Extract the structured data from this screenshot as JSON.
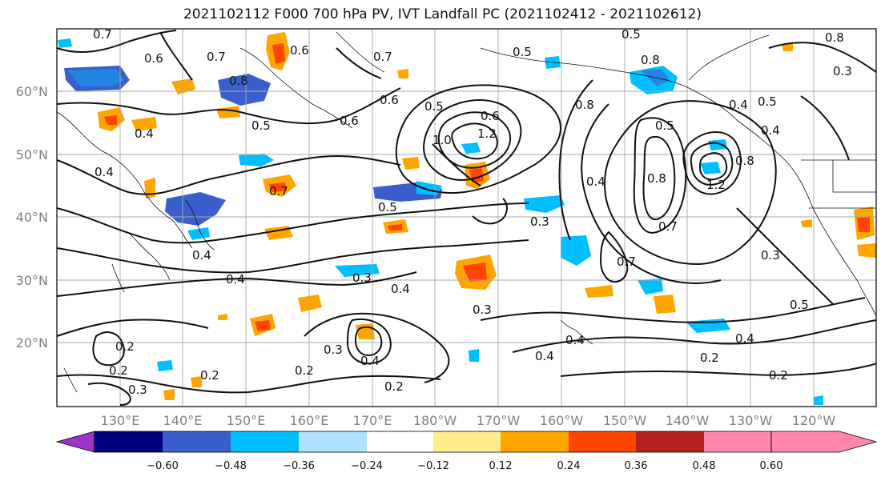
{
  "title": "2021102112 F000 700 hPa PV, IVT Landfall PC (2021102412 - 2021102612)",
  "axes": {
    "lat_labels": [
      "60°N",
      "50°N",
      "40°N",
      "30°N",
      "20°N"
    ],
    "lon_labels": [
      "130°E",
      "140°E",
      "150°E",
      "160°E",
      "170°E",
      "180°W",
      "170°W",
      "160°W",
      "150°W",
      "140°W",
      "130°W",
      "120°W"
    ]
  },
  "colorbar": {
    "ticks": [
      "−0.60",
      "−0.48",
      "−0.36",
      "−0.24",
      "−0.12",
      "0.12",
      "0.24",
      "0.36",
      "0.48",
      "0.60"
    ],
    "colors": [
      "#9933cc",
      "#000080",
      "#3a5fcd",
      "#00bfff",
      "#b0e2ff",
      "#ffffff",
      "#ffec8b",
      "#ffa500",
      "#ff4500",
      "#b22222",
      "#ff88aa"
    ]
  },
  "contour_labels": [
    {
      "text": "0.7"
    },
    {
      "text": "0.6"
    },
    {
      "text": "0.8"
    },
    {
      "text": "0.6"
    },
    {
      "text": "0.7"
    },
    {
      "text": "0.5"
    },
    {
      "text": "0.4"
    },
    {
      "text": "0.6"
    },
    {
      "text": "0.4"
    },
    {
      "text": "0.7"
    },
    {
      "text": "0.5"
    },
    {
      "text": "0.7"
    },
    {
      "text": "0.6"
    },
    {
      "text": "0.5"
    },
    {
      "text": "1.0"
    },
    {
      "text": "1.2"
    },
    {
      "text": "0.8"
    },
    {
      "text": "0.5"
    },
    {
      "text": "0.4"
    },
    {
      "text": "0.3"
    },
    {
      "text": "0.4"
    },
    {
      "text": "0.4"
    },
    {
      "text": "0.3"
    },
    {
      "text": "0.4"
    },
    {
      "text": "0.3"
    },
    {
      "text": "0.2"
    },
    {
      "text": "0.2"
    },
    {
      "text": "0.2"
    },
    {
      "text": "0.3"
    },
    {
      "text": "0.2"
    },
    {
      "text": "0.3"
    },
    {
      "text": "0.4"
    },
    {
      "text": "0.2"
    },
    {
      "text": "0.4"
    },
    {
      "text": "0.8"
    },
    {
      "text": "0.5"
    },
    {
      "text": "0.8"
    },
    {
      "text": "0.4"
    },
    {
      "text": "0.5"
    },
    {
      "text": "0.4"
    },
    {
      "text": "0.5"
    },
    {
      "text": "0.4"
    },
    {
      "text": "0.7"
    },
    {
      "text": "1.2"
    },
    {
      "text": "0.8"
    },
    {
      "text": "0.3"
    },
    {
      "text": "0.5"
    },
    {
      "text": "0.4"
    },
    {
      "text": "0.2"
    },
    {
      "text": "0.2"
    },
    {
      "text": "0.8"
    },
    {
      "text": "0.3"
    },
    {
      "text": "0.7"
    },
    {
      "text": "0.6"
    }
  ]
}
